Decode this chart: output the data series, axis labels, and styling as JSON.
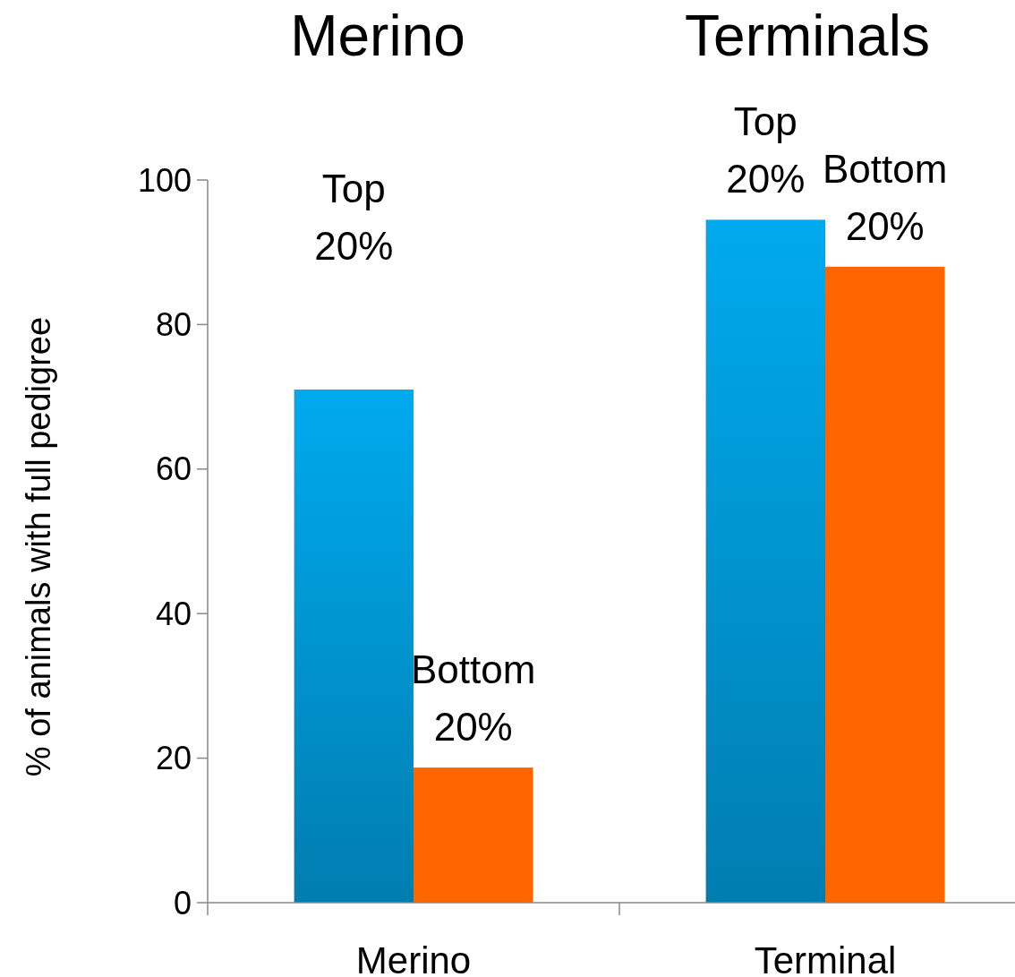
{
  "chart_data": {
    "type": "bar",
    "ylabel": "% of animals with full pedigree",
    "categories": [
      "Merino",
      "Terminal"
    ],
    "series": [
      {
        "name": "Top 20%",
        "color": "#0096d2",
        "values": [
          71,
          94.5
        ]
      },
      {
        "name": "Bottom 20%",
        "color": "#ff6600",
        "values": [
          18.7,
          88
        ]
      }
    ],
    "ylim": [
      0,
      100
    ],
    "yticks": [
      0,
      20,
      40,
      60,
      80,
      100
    ],
    "grid": false,
    "annotations": [
      "Merino",
      "Terminals"
    ]
  }
}
